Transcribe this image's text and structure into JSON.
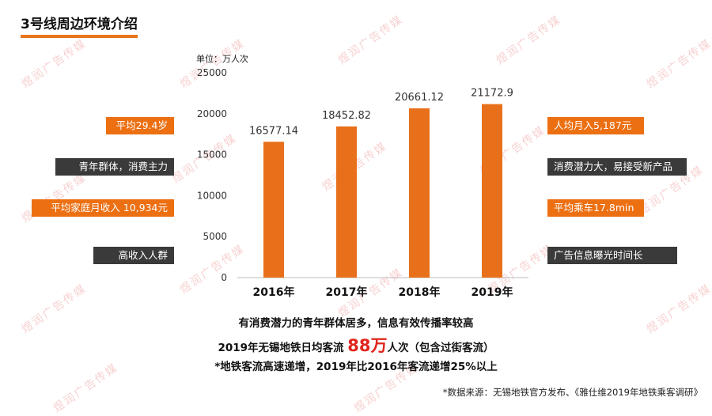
{
  "title": "3号线周边环境介绍",
  "unit": "单位：万人次",
  "chart_data": {
    "type": "bar",
    "categories": [
      "2016年",
      "2017年",
      "2018年",
      "2019年"
    ],
    "values": [
      16577.14,
      18452.82,
      20661.12,
      21172.9
    ],
    "data_labels": [
      "16577.14",
      "18452.82",
      "20661.12",
      "21172.9"
    ],
    "yticks": [
      0,
      5000,
      10000,
      15000,
      20000,
      25000
    ],
    "ylim": [
      0,
      25000
    ],
    "bar_color": "#e8701a",
    "grid": false
  },
  "left_tags": [
    {
      "text": "平均29.4岁",
      "style": "orange"
    },
    {
      "text": "青年群体，消费主力",
      "style": "dark"
    },
    {
      "text": "平均家庭月收入 10,934元",
      "style": "orange"
    },
    {
      "text": "高收入人群",
      "style": "dark"
    }
  ],
  "right_tags": [
    {
      "text": "人均月入5,187元",
      "style": "orange"
    },
    {
      "text": "消费潜力大，易接受新产品",
      "style": "dark"
    },
    {
      "text": "平均乘车17.8min",
      "style": "orange"
    },
    {
      "text": "广告信息曝光时间长",
      "style": "dark"
    }
  ],
  "summary": {
    "line1": "有消费潜力的青年群体居多，信息有效传播率较高",
    "line2_prefix": "2019年无锡地铁日均客流 ",
    "line2_highlight": "88万",
    "line2_suffix": "人次（包含过街客流）",
    "line3": "*地铁客流高速递增，2019年比2016年客流递增25%以上"
  },
  "source": "*数据来源：无锡地铁官方发布、《雅仕维2019年地铁乘客调研》",
  "watermark": "煜润广告传媒",
  "colors": {
    "accent": "#ec6f12",
    "dark": "#3a3a3a",
    "highlight": "#e0251b"
  }
}
